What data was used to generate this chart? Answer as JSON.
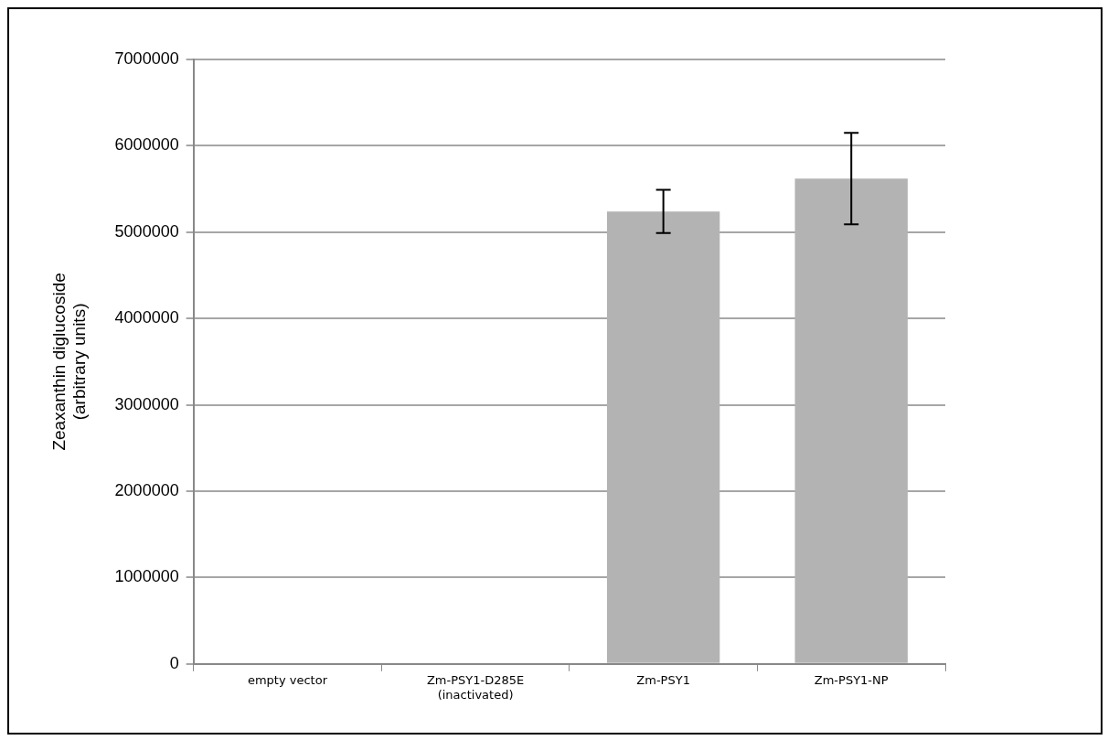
{
  "chart_data": {
    "type": "bar",
    "ylabel": "Zeaxanthin diglucoside\n(arbitrary units)",
    "categories": [
      "empty vector",
      "Zm-PSY1-D285E\n(inactivated)",
      "Zm-PSY1",
      "Zm-PSY1-NP"
    ],
    "values": [
      0,
      0,
      5240000,
      5620000
    ],
    "errors": [
      null,
      null,
      250000,
      530000
    ],
    "color": "#b3b3b3",
    "ylim": [
      0,
      7000000
    ],
    "yticks": [
      0,
      1000000,
      2000000,
      3000000,
      4000000,
      5000000,
      6000000,
      7000000
    ],
    "grid": "y",
    "legend": false
  }
}
